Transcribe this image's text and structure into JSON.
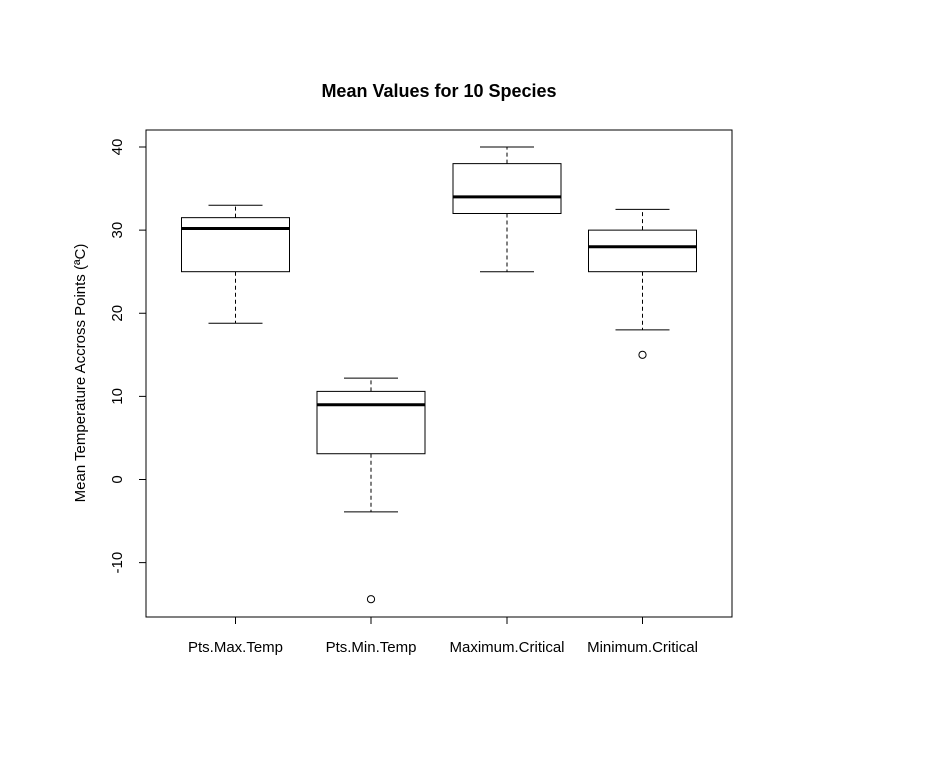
{
  "chart_data": {
    "type": "boxplot",
    "title": "Mean Values for 10 Species",
    "xlabel": "",
    "ylabel": "Mean Temperature Accross Points (ªC)",
    "ylim": [
      -16.5,
      42
    ],
    "yticks": [
      -10,
      0,
      10,
      20,
      30,
      40
    ],
    "categories": [
      "Pts.Max.Temp",
      "Pts.Min.Temp",
      "Maximum.Critical",
      "Minimum.Critical"
    ],
    "boxes": [
      {
        "category": "Pts.Max.Temp",
        "whisker_low": 18.8,
        "q1": 25.0,
        "median": 30.2,
        "q3": 31.5,
        "whisker_high": 33.0,
        "outliers": []
      },
      {
        "category": "Pts.Min.Temp",
        "whisker_low": -3.9,
        "q1": 3.1,
        "median": 9.0,
        "q3": 10.6,
        "whisker_high": 12.2,
        "outliers": [
          -14.4
        ]
      },
      {
        "category": "Maximum.Critical",
        "whisker_low": 25.0,
        "q1": 32.0,
        "median": 34.0,
        "q3": 38.0,
        "whisker_high": 40.0,
        "outliers": []
      },
      {
        "category": "Minimum.Critical",
        "whisker_low": 18.0,
        "q1": 25.0,
        "median": 28.0,
        "q3": 30.0,
        "whisker_high": 32.5,
        "outliers": [
          15.0
        ]
      }
    ],
    "grid": false,
    "legend": "none",
    "colors": {
      "box_fill": "#ffffff",
      "stroke": "#000000"
    }
  }
}
